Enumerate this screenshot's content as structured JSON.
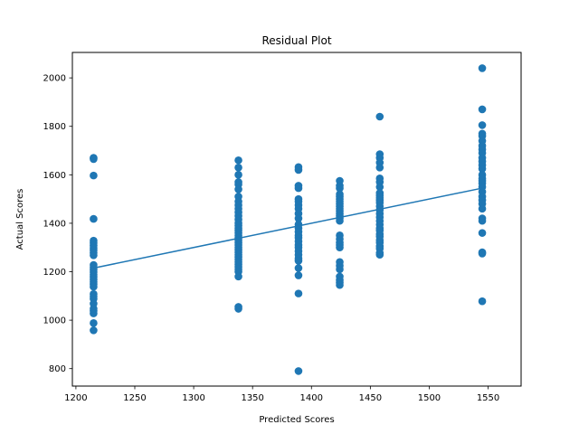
{
  "chart_data": {
    "type": "scatter",
    "title": "Residual Plot",
    "xlabel": "Predicted Scores",
    "ylabel": "Actual Scores",
    "xlim": [
      1197,
      1578
    ],
    "ylim": [
      728,
      2105
    ],
    "xticks": [
      1200,
      1250,
      1300,
      1350,
      1400,
      1450,
      1500,
      1550
    ],
    "yticks": [
      800,
      1000,
      1200,
      1400,
      1600,
      1800,
      2000
    ],
    "grid": false,
    "colors": {
      "points": "#1f77b4",
      "line": "#1f77b4"
    },
    "groups": [
      {
        "x": 1215,
        "y": [
          1670,
          1665,
          1597,
          1418,
          1328,
          1318,
          1308,
          1298,
          1288,
          1278,
          1268,
          1228,
          1218,
          1208,
          1198,
          1188,
          1178,
          1168,
          1158,
          1148,
          1138,
          1108,
          1098,
          1088,
          1068,
          1048,
          1038,
          1028,
          988,
          958
        ]
      },
      {
        "x": 1338,
        "y": [
          1660,
          1630,
          1600,
          1570,
          1560,
          1540,
          1510,
          1490,
          1475,
          1460,
          1445,
          1430,
          1415,
          1400,
          1390,
          1380,
          1370,
          1360,
          1350,
          1340,
          1330,
          1320,
          1310,
          1300,
          1290,
          1280,
          1270,
          1260,
          1250,
          1240,
          1230,
          1220,
          1210,
          1200,
          1180,
          1055,
          1047
        ]
      },
      {
        "x": 1389,
        "y": [
          1632,
          1620,
          1555,
          1545,
          1500,
          1490,
          1475,
          1460,
          1440,
          1420,
          1395,
          1380,
          1365,
          1350,
          1340,
          1325,
          1310,
          1300,
          1285,
          1270,
          1255,
          1245,
          1215,
          1185,
          1110,
          790
        ]
      },
      {
        "x": 1424,
        "y": [
          1575,
          1555,
          1545,
          1520,
          1510,
          1500,
          1490,
          1480,
          1470,
          1460,
          1450,
          1440,
          1430,
          1420,
          1410,
          1350,
          1335,
          1320,
          1310,
          1300,
          1240,
          1225,
          1210,
          1180,
          1165,
          1155,
          1145
        ]
      },
      {
        "x": 1458,
        "y": [
          1840,
          1685,
          1670,
          1650,
          1630,
          1585,
          1570,
          1550,
          1525,
          1515,
          1505,
          1495,
          1485,
          1470,
          1455,
          1440,
          1425,
          1410,
          1395,
          1380,
          1370,
          1355,
          1345,
          1330,
          1320,
          1305,
          1295,
          1278,
          1270
        ]
      },
      {
        "x": 1545,
        "y": [
          2040,
          1870,
          1805,
          1770,
          1760,
          1740,
          1720,
          1705,
          1690,
          1670,
          1655,
          1640,
          1625,
          1600,
          1585,
          1575,
          1565,
          1550,
          1530,
          1510,
          1495,
          1480,
          1460,
          1420,
          1410,
          1360,
          1280,
          1275,
          1078
        ]
      }
    ],
    "fit_line": {
      "x": [
        1215,
        1545
      ],
      "y": [
        1215,
        1545
      ]
    }
  }
}
